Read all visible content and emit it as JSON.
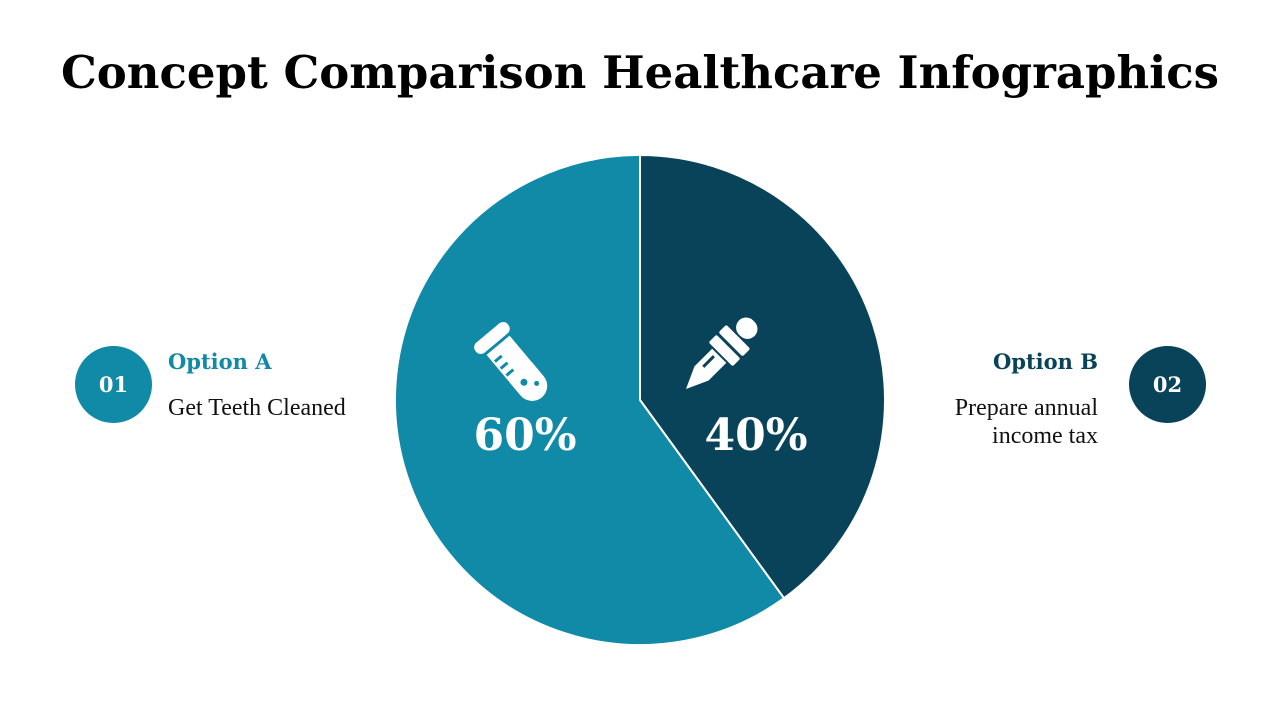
{
  "title": "Concept Comparison Healthcare Infographics",
  "colors": {
    "option_a": "#108aa6",
    "option_b": "#09435a"
  },
  "options": [
    {
      "number": "01",
      "title": "Option A",
      "description": "Get Teeth Cleaned",
      "percent_label": "60%",
      "icon": "test-tube-icon"
    },
    {
      "number": "02",
      "title": "Option B",
      "description": "Prepare annual income tax",
      "percent_label": "40%",
      "icon": "dropper-icon"
    }
  ],
  "chart_data": {
    "type": "pie",
    "slices": [
      {
        "label": "Option A",
        "value": 60
      },
      {
        "label": "Option B",
        "value": 40
      }
    ]
  }
}
